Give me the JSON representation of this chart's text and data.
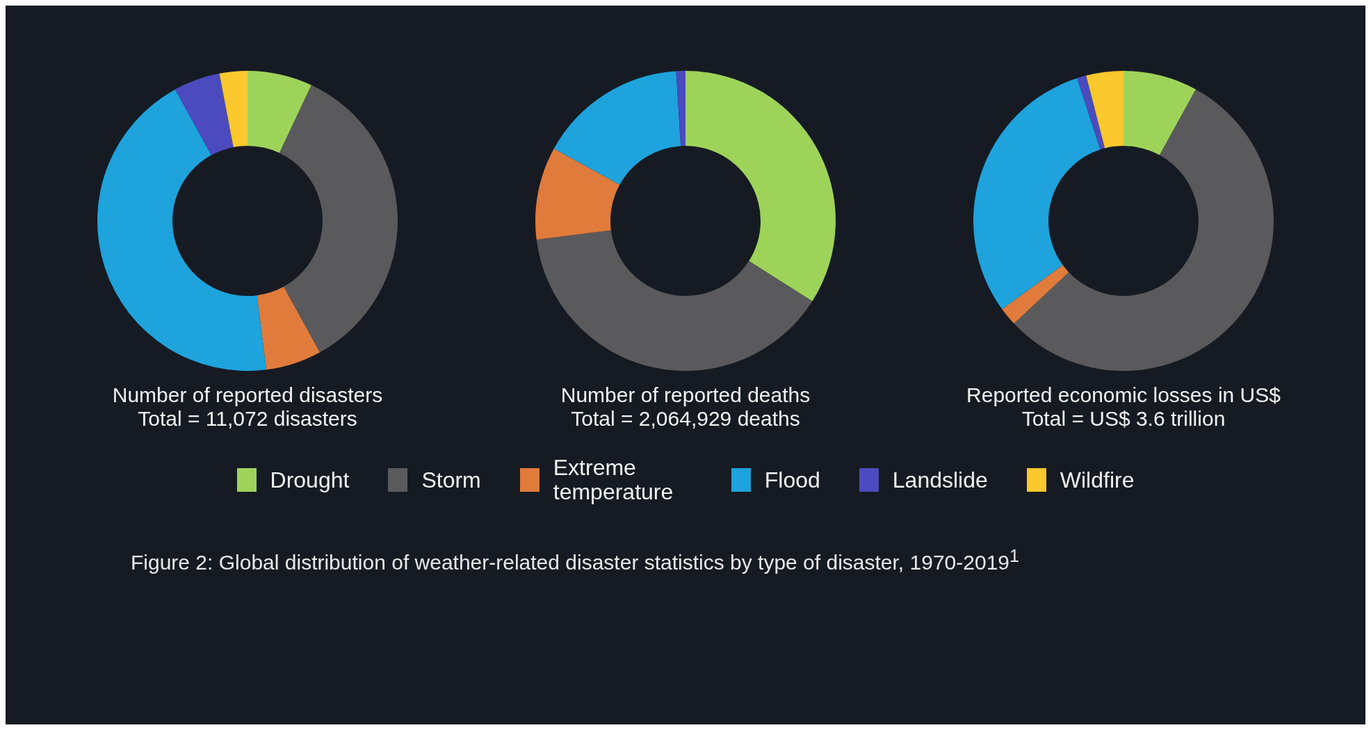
{
  "chart_data": {
    "type": "donut",
    "categories": [
      "Drought",
      "Storm",
      "Extreme temperature",
      "Flood",
      "Landslide",
      "Wildfire"
    ],
    "colors": [
      "#9ed35a",
      "#5a5a5c",
      "#e07b3c",
      "#1ea3dc",
      "#4b4bbf",
      "#fbc82d"
    ],
    "legend": "bottom",
    "series": [
      {
        "name": "Number of reported disasters",
        "values": [
          7,
          35,
          6,
          44,
          5,
          3
        ]
      },
      {
        "name": "Number of reported deaths",
        "values": [
          34,
          39,
          10,
          16,
          1,
          0
        ]
      },
      {
        "name": "Reported economic losses in US$",
        "values": [
          8,
          55,
          2,
          30,
          1,
          4
        ]
      }
    ],
    "annotations": [
      "Total = 11,072 disasters",
      "Total = 2,064,929 deaths",
      "Total = US$ 3.6 trillion",
      "Figure 2: Global distribution of weather-related disaster statistics by type of disaster, 1970-2019$^{1}$"
    ]
  }
}
